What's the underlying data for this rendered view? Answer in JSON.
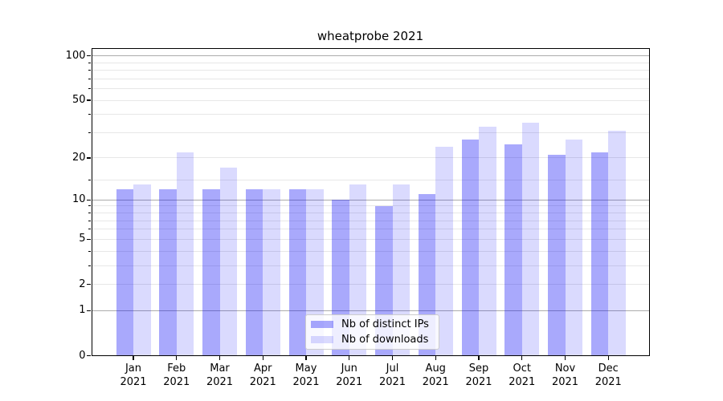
{
  "chart_data": {
    "type": "bar",
    "title": "wheatprobe 2021",
    "categories": [
      "Jan",
      "Feb",
      "Mar",
      "Apr",
      "May",
      "Jun",
      "Jul",
      "Aug",
      "Sep",
      "Oct",
      "Nov",
      "Dec"
    ],
    "x_year_label": "2021",
    "series": [
      {
        "name": "Nb of distinct IPs",
        "color": "rgba(10,10,245,0.35)",
        "values": [
          12,
          12,
          12,
          12,
          12,
          10,
          9,
          11,
          27,
          25,
          21,
          22
        ]
      },
      {
        "name": "Nb of downloads",
        "color": "rgba(10,10,245,0.15)",
        "values": [
          13,
          22,
          17,
          12,
          12,
          13,
          13,
          24,
          33,
          35,
          27,
          31
        ]
      }
    ],
    "xlabel": "",
    "ylabel": "",
    "yscale": "log1p",
    "ylim": [
      0,
      113
    ],
    "yticks": [
      0,
      1,
      2,
      5,
      10,
      20,
      50,
      100
    ],
    "major_gridlines": [
      1,
      10,
      100
    ],
    "minor_gridlines": [
      2,
      3,
      4,
      5,
      6,
      7,
      8,
      9,
      14,
      20,
      30,
      40,
      50,
      60,
      70,
      80,
      90
    ],
    "grid": true,
    "legend_position": "lower center"
  },
  "colors": {
    "major_grid": "#ababab",
    "minor_grid": "#e7e7e7",
    "frame": "#000000",
    "legend_border": "#cccccc",
    "legend_background": "rgba(255,255,255,0.8)"
  }
}
